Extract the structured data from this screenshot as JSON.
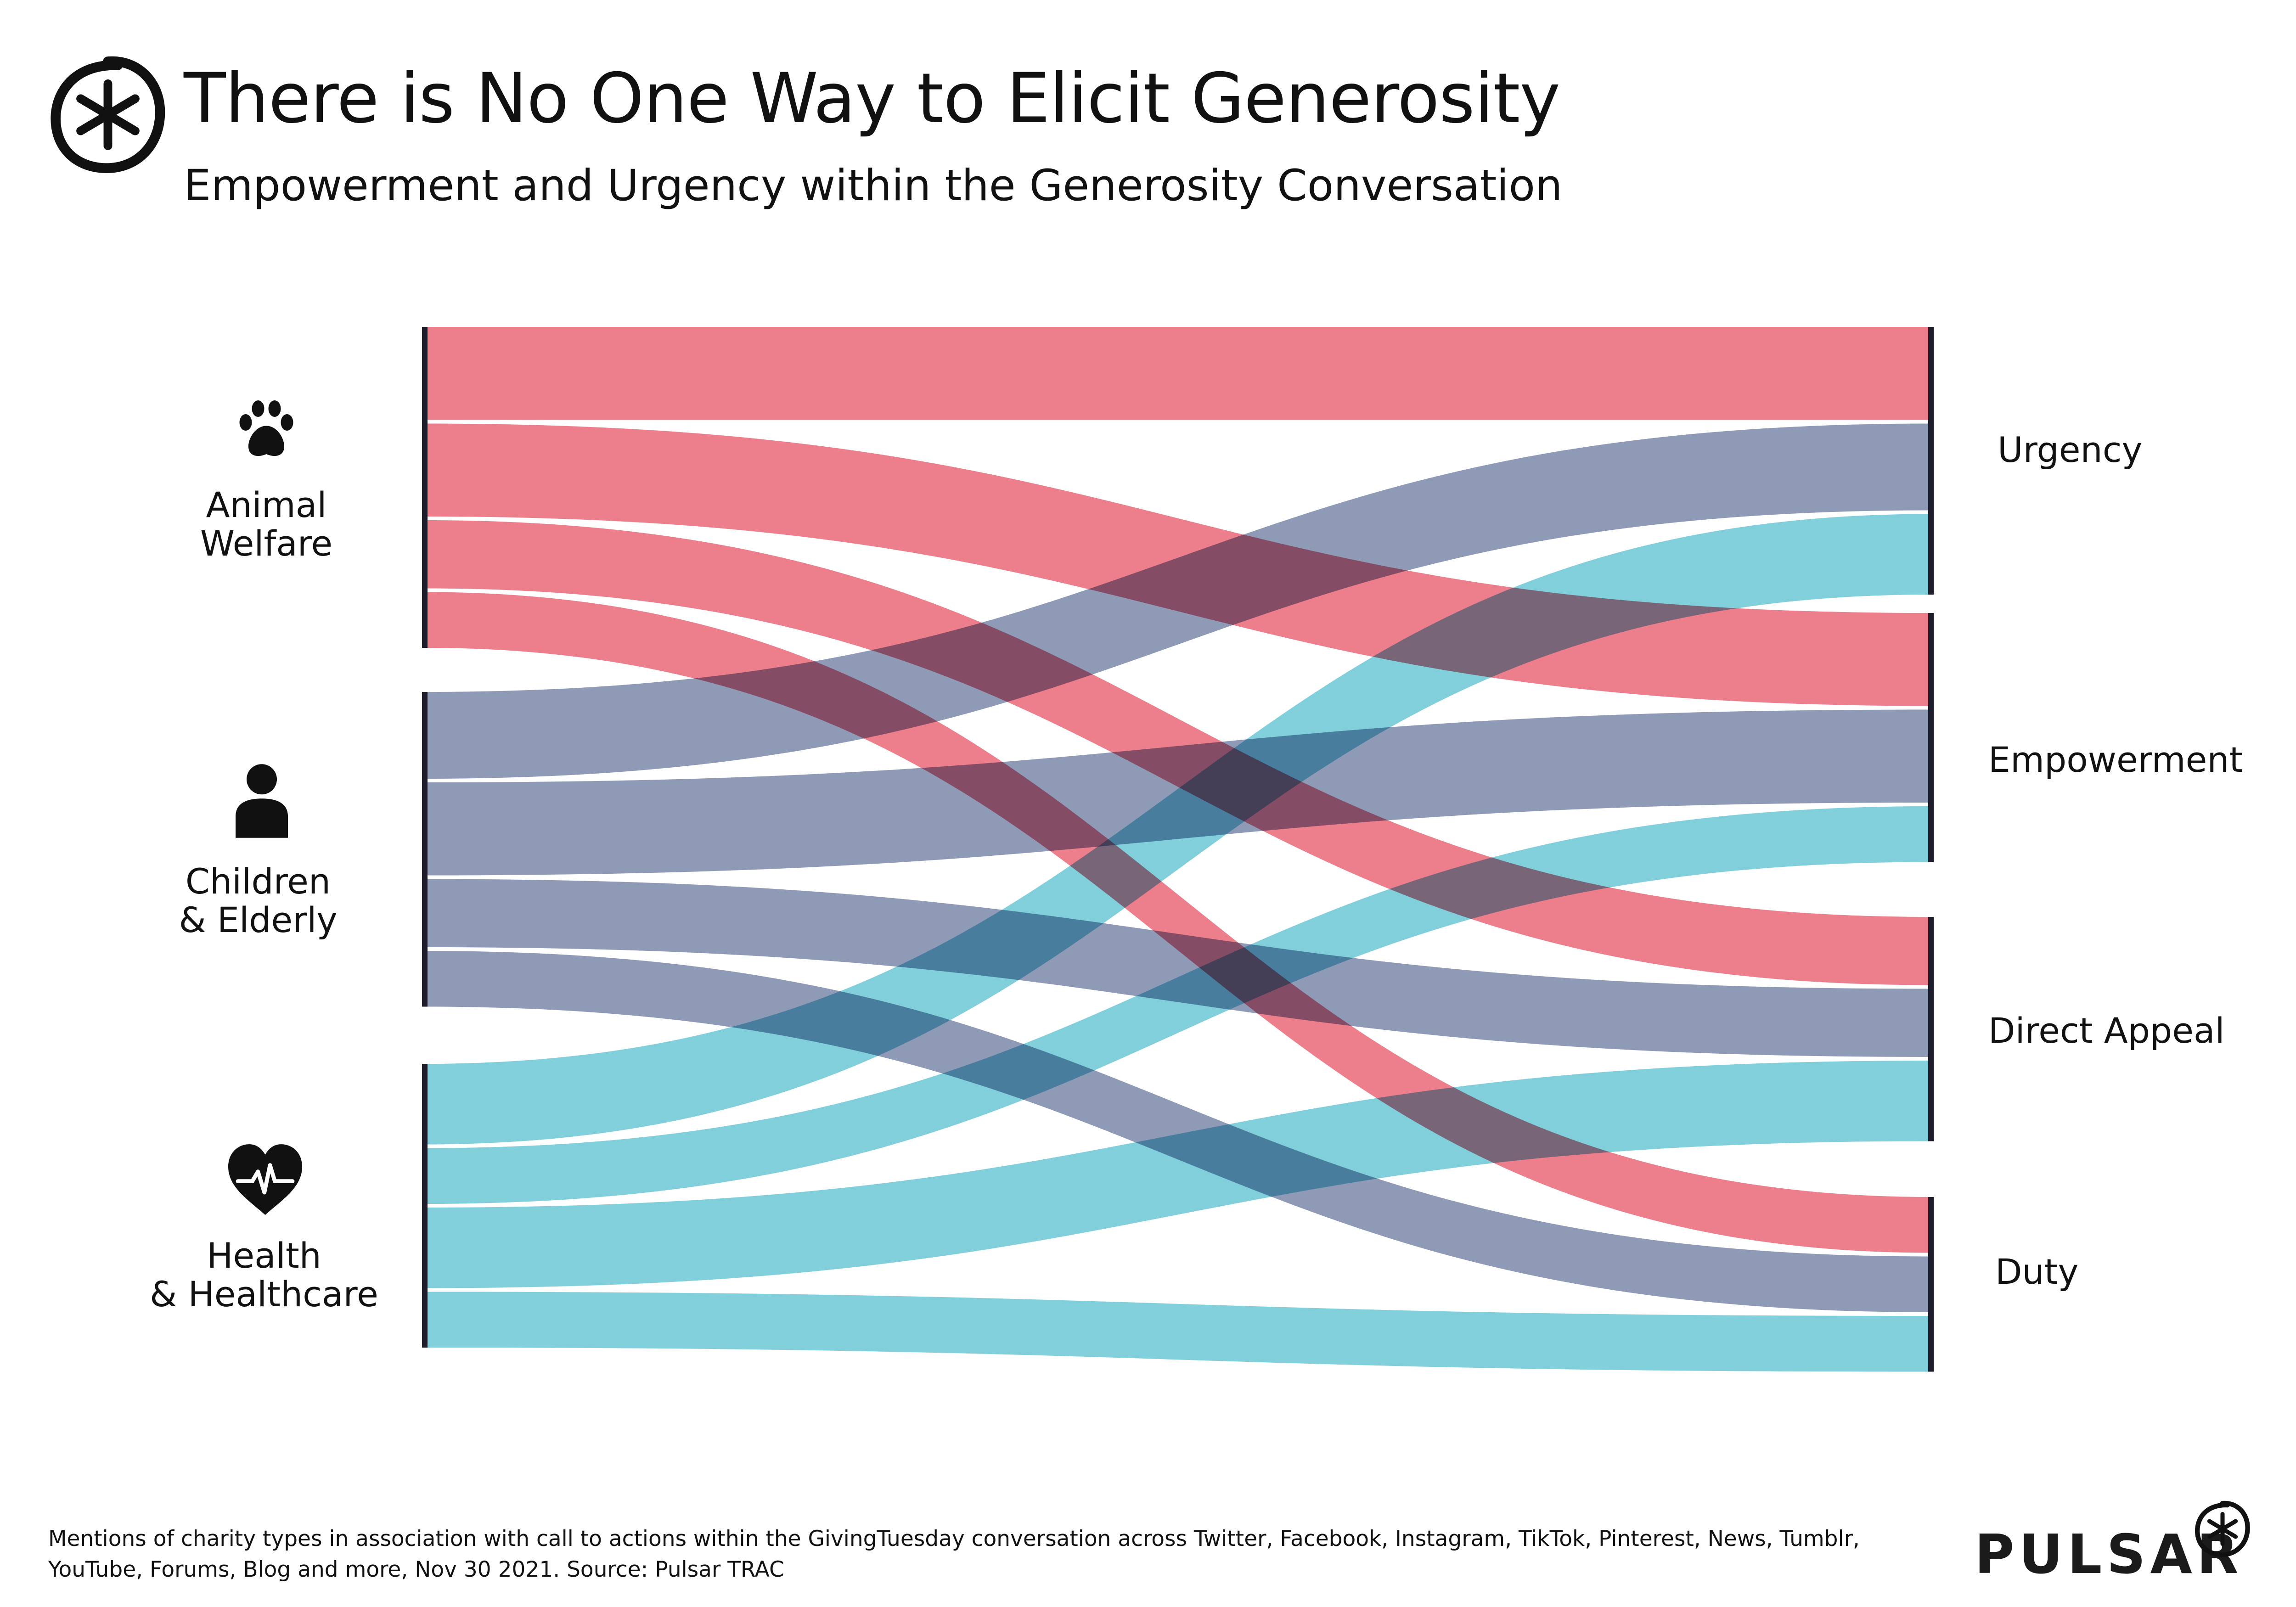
{
  "header": {
    "title": "There is No One Way to Elicit Generosity",
    "subtitle": "Empowerment and Urgency within the Generosity Conversation",
    "logo_icon": "asterisk-circle-icon"
  },
  "chart_data": {
    "type": "sankey",
    "source_nodes": [
      "Animal Welfare",
      "Children & Elderly",
      "Health & Healthcare"
    ],
    "target_nodes": [
      "Urgency",
      "Empowerment",
      "Direct Appeal",
      "Duty"
    ],
    "series": [
      {
        "name": "Animal Welfare",
        "color": "#e85a6b",
        "icon": "paw-icon",
        "label_lines": [
          "Animal",
          "Welfare"
        ]
      },
      {
        "name": "Children & Elderly",
        "color": "#6f7ea3",
        "icon": "person-icon",
        "label_lines": [
          "Children",
          "& Elderly"
        ]
      },
      {
        "name": "Health & Healthcare",
        "color": "#5ec1d1",
        "icon": "heart-pulse-icon",
        "label_lines": [
          "Health",
          "& Healthcare"
        ]
      }
    ],
    "links": [
      {
        "source": "Animal Welfare",
        "target": "Urgency",
        "value": 15
      },
      {
        "source": "Animal Welfare",
        "target": "Empowerment",
        "value": 15
      },
      {
        "source": "Animal Welfare",
        "target": "Direct Appeal",
        "value": 11
      },
      {
        "source": "Animal Welfare",
        "target": "Duty",
        "value": 9
      },
      {
        "source": "Children & Elderly",
        "target": "Urgency",
        "value": 14
      },
      {
        "source": "Children & Elderly",
        "target": "Empowerment",
        "value": 15
      },
      {
        "source": "Children & Elderly",
        "target": "Direct Appeal",
        "value": 11
      },
      {
        "source": "Children & Elderly",
        "target": "Duty",
        "value": 9
      },
      {
        "source": "Health & Healthcare",
        "target": "Urgency",
        "value": 13
      },
      {
        "source": "Health & Healthcare",
        "target": "Empowerment",
        "value": 9
      },
      {
        "source": "Health & Healthcare",
        "target": "Direct Appeal",
        "value": 13
      },
      {
        "source": "Health & Healthcare",
        "target": "Duty",
        "value": 9
      }
    ]
  },
  "footer": {
    "note": "Mentions of charity types in association with call to actions within the GivingTuesday conversation across Twitter, Facebook, Instagram, TikTok, Pinterest, News, Tumblr, YouTube, Forums, Blog and more, Nov 30 2021. Source: Pulsar TRAC",
    "brand": "PULSAR",
    "brand_icon": "asterisk-circle-icon"
  }
}
